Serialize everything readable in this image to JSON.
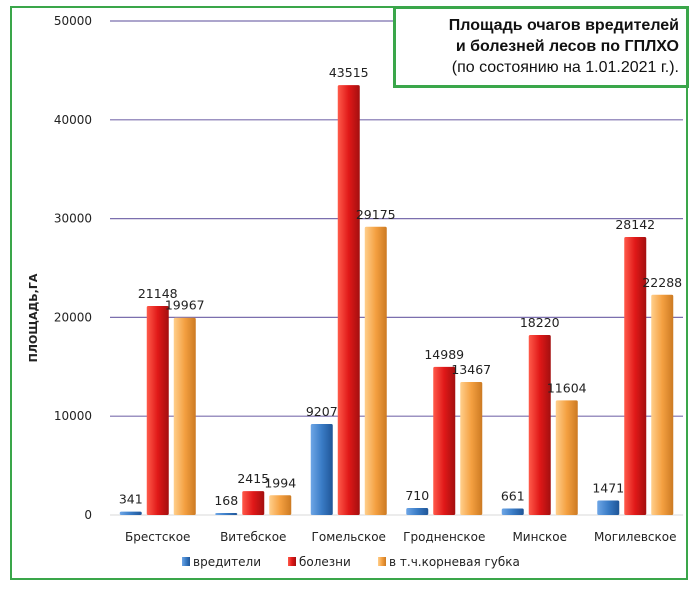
{
  "title": {
    "line1": "Площадь очагов вредителей",
    "line2": "и болезней лесов по ГПЛХО",
    "line3": "(по состоянию на 1.01.2021 г.)."
  },
  "chart_data": {
    "type": "bar",
    "ylabel": "ПЛОЩАДЬ,ГА",
    "xlabel": "",
    "ylim": [
      0,
      50000
    ],
    "yticks": [
      "0",
      "10000",
      "20000",
      "30000",
      "40000",
      "50000"
    ],
    "grid": true,
    "legend_position": "bottom",
    "categories": [
      "Брестское",
      "Витебское",
      "Гомельское",
      "Гродненское",
      "Минское",
      "Могилевское"
    ],
    "series": [
      {
        "name": "вредители",
        "color": "#3a7cc6",
        "values": [
          341,
          168,
          9207,
          710,
          661,
          1471
        ]
      },
      {
        "name": "болезни",
        "color": "#e02020",
        "values": [
          21148,
          2415,
          43515,
          14989,
          18220,
          28142
        ]
      },
      {
        "name": "в т.ч.корневая  губка",
        "color": "#f4a041",
        "values": [
          19967,
          1994,
          29175,
          13467,
          11604,
          22288
        ]
      }
    ]
  }
}
